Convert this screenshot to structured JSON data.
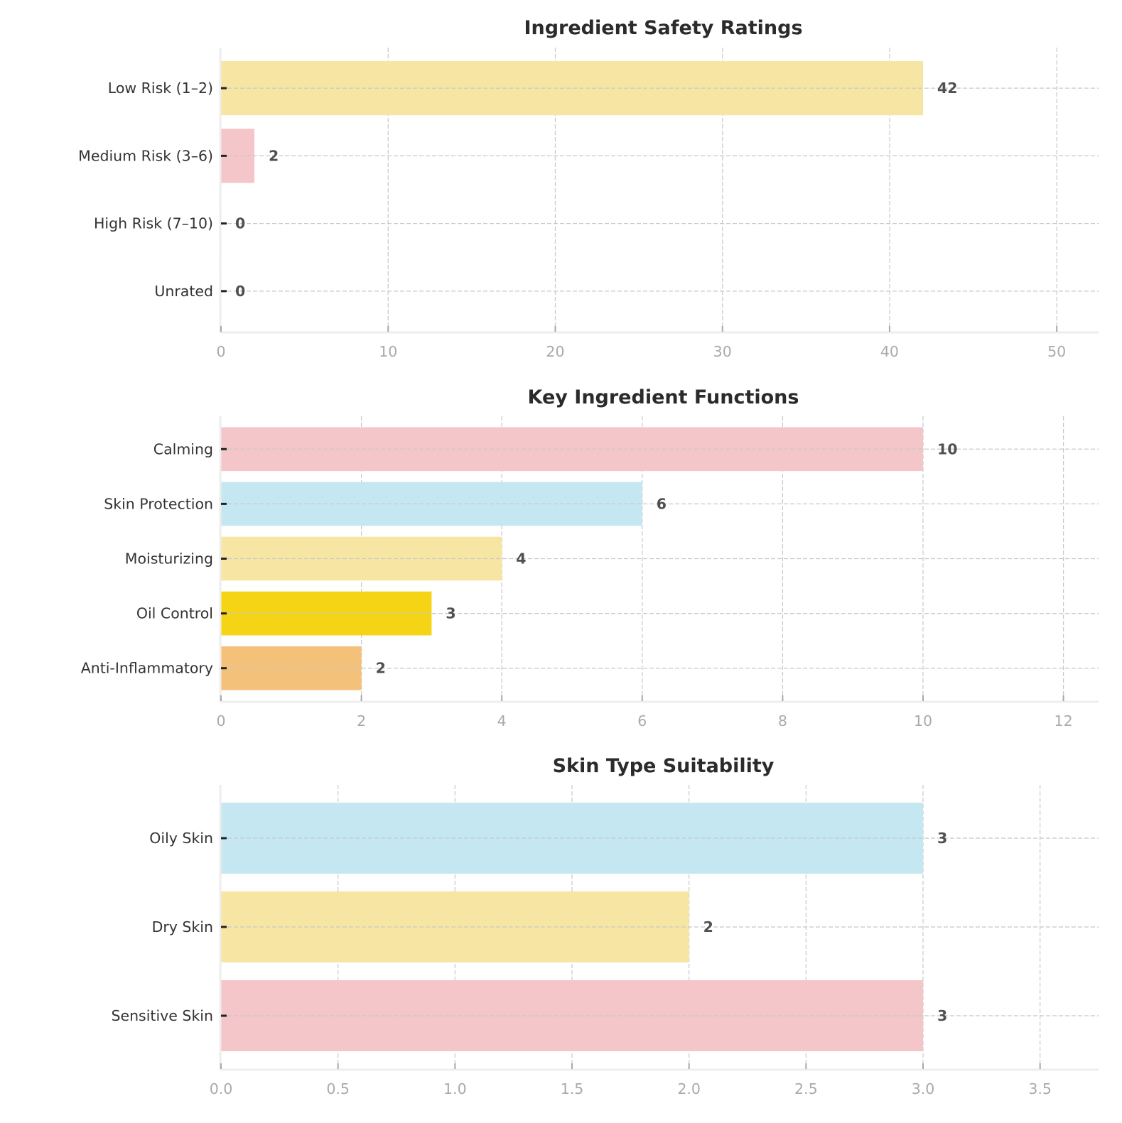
{
  "chart_data": [
    {
      "type": "bar",
      "orientation": "horizontal",
      "title": "Ingredient Safety Ratings",
      "xlabel": "",
      "ylabel": "",
      "categories": [
        "Low Risk (1–2)",
        "Medium Risk (3–6)",
        "High Risk (7–10)",
        "Unrated"
      ],
      "values": [
        42,
        2,
        0,
        0
      ],
      "value_labels": [
        "42",
        "2",
        "0",
        "0"
      ],
      "colors": [
        "#f7e6a3",
        "#f4c5c9",
        "#f4c5c9",
        "#f4c5c9"
      ],
      "xlim": [
        0,
        52.5
      ],
      "xticks": [
        0,
        10,
        20,
        30,
        40,
        50
      ],
      "xtick_labels": [
        "0",
        "10",
        "20",
        "30",
        "40",
        "50"
      ],
      "grid": true
    },
    {
      "type": "bar",
      "orientation": "horizontal",
      "title": "Key Ingredient Functions",
      "xlabel": "",
      "ylabel": "",
      "categories": [
        "Calming",
        "Skin Protection",
        "Moisturizing",
        "Oil Control",
        "Anti-Inflammatory"
      ],
      "values": [
        10,
        6,
        4,
        3,
        2
      ],
      "value_labels": [
        "10",
        "6",
        "4",
        "3",
        "2"
      ],
      "colors": [
        "#f4c5c9",
        "#c5e7f2",
        "#f7e6a3",
        "#f5d415",
        "#f4c17b"
      ],
      "xlim": [
        0,
        12.5
      ],
      "xticks": [
        0,
        2,
        4,
        6,
        8,
        10,
        12
      ],
      "xtick_labels": [
        "0",
        "2",
        "4",
        "6",
        "8",
        "10",
        "12"
      ],
      "grid": true
    },
    {
      "type": "bar",
      "orientation": "horizontal",
      "title": "Skin Type Suitability",
      "xlabel": "",
      "ylabel": "",
      "categories": [
        "Oily Skin",
        "Dry Skin",
        "Sensitive Skin"
      ],
      "values": [
        3,
        2,
        3
      ],
      "value_labels": [
        "3",
        "2",
        "3"
      ],
      "colors": [
        "#c5e7f2",
        "#f7e6a3",
        "#f4c5c9"
      ],
      "xlim": [
        0,
        3.75
      ],
      "xticks": [
        0,
        0.5,
        1.0,
        1.5,
        2.0,
        2.5,
        3.0,
        3.5
      ],
      "xtick_labels": [
        "0.0",
        "0.5",
        "1.0",
        "1.5",
        "2.0",
        "2.5",
        "3.0",
        "3.5"
      ],
      "grid": true
    }
  ],
  "style": {
    "title_color": "#2b2b2b",
    "label_color": "#333333",
    "tick_color": "#aaaaaa",
    "value_label_color": "#505050",
    "grid_color": "#c8c8c8"
  }
}
